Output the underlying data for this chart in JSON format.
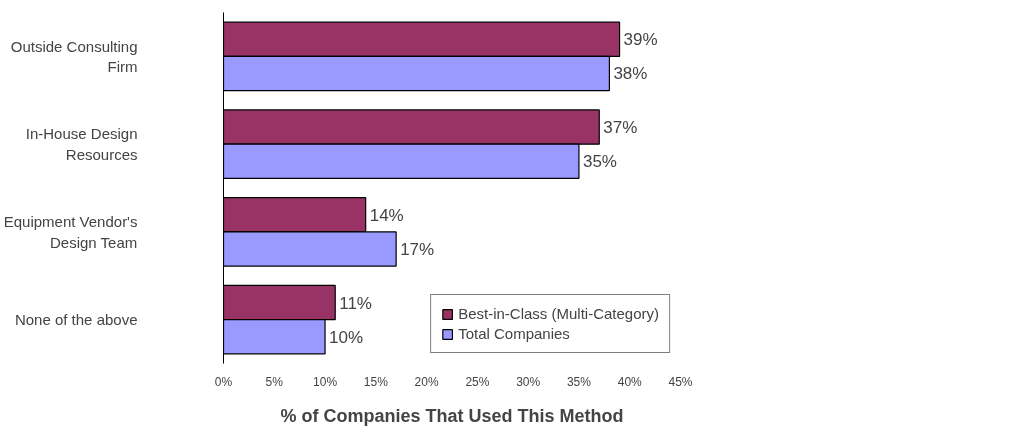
{
  "chart_data": {
    "type": "bar",
    "orientation": "horizontal",
    "xlabel": "% of Companies That Used This Method",
    "categories": [
      "Outside Consulting Firm",
      "In-House Design Resources",
      "Equipment Vendor's Design Team",
      "None of the above"
    ],
    "series": [
      {
        "name": "Best-in-Class (Multi-Category)",
        "color": "#993366",
        "values": [
          39,
          37,
          14,
          11
        ],
        "value_labels": [
          "39%",
          "37%",
          "14%",
          "11%"
        ]
      },
      {
        "name": "Total Companies",
        "color": "#9999ff",
        "values": [
          38,
          35,
          17,
          10
        ],
        "value_labels": [
          "38%",
          "35%",
          "17%",
          "10%"
        ]
      }
    ],
    "xlim": [
      0,
      45
    ],
    "xticks": [
      {
        "value": 0,
        "label": "0%"
      },
      {
        "value": 5,
        "label": "5%"
      },
      {
        "value": 10,
        "label": "10%"
      },
      {
        "value": 15,
        "label": "15%"
      },
      {
        "value": 20,
        "label": "20%"
      },
      {
        "value": 25,
        "label": "25%"
      },
      {
        "value": 30,
        "label": "30%"
      },
      {
        "value": 35,
        "label": "35%"
      },
      {
        "value": 40,
        "label": "40%"
      },
      {
        "value": 45,
        "label": "45%"
      }
    ],
    "grid": false,
    "legend": "bottom right"
  }
}
